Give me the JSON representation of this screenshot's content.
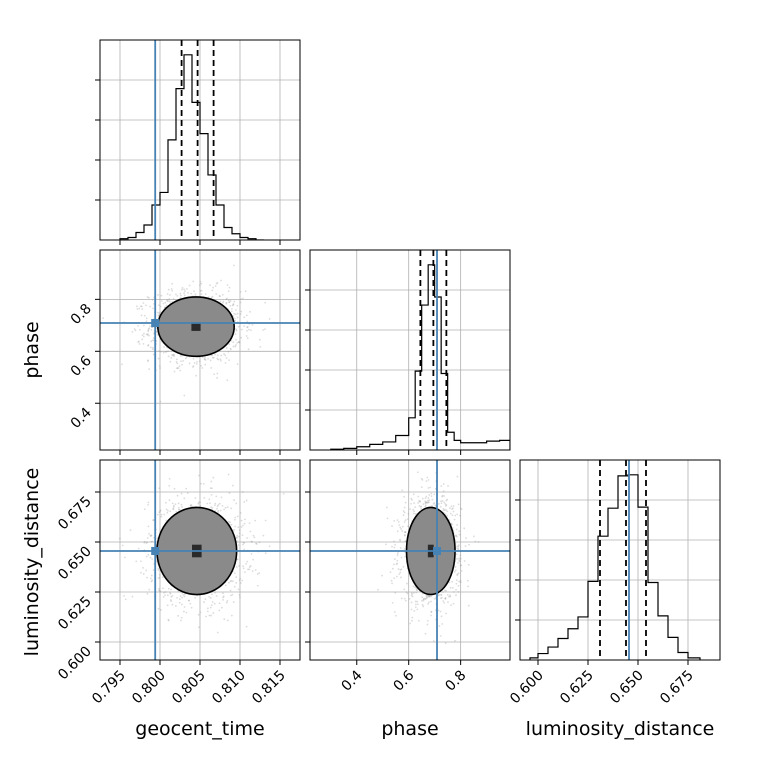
{
  "chart_data": {
    "type": "corner",
    "parameters": [
      "geocent_time",
      "phase",
      "luminosity_distance"
    ],
    "truths": {
      "geocent_time": 0.7994,
      "phase": 0.709,
      "luminosity_distance": 0.6455
    },
    "truth_color": "#4682b4",
    "ranges": {
      "geocent_time": [
        0.7925,
        0.8175
      ],
      "phase": [
        0.22,
        0.99
      ],
      "luminosity_distance": [
        0.591,
        0.691
      ]
    },
    "ticks": {
      "geocent_time": [
        0.795,
        0.8,
        0.805,
        0.81,
        0.815
      ],
      "phase": [
        0.4,
        0.6,
        0.8
      ],
      "luminosity_distance": [
        0.6,
        0.625,
        0.65,
        0.675
      ]
    },
    "tick_labels": {
      "geocent_time": [
        "0.795",
        "0.800",
        "0.805",
        "0.810",
        "0.815"
      ],
      "phase": [
        "0.4",
        "0.6",
        "0.8"
      ],
      "luminosity_distance": [
        "0.600",
        "0.625",
        "0.650",
        "0.675"
      ]
    },
    "quantiles": {
      "geocent_time": [
        0.8027,
        0.8047,
        0.8067
      ],
      "phase": [
        0.645,
        0.695,
        0.745
      ],
      "luminosity_distance": [
        0.631,
        0.644,
        0.654
      ]
    },
    "histograms": {
      "geocent_time": {
        "edges": [
          0.795,
          0.796,
          0.797,
          0.798,
          0.799,
          0.8,
          0.801,
          0.802,
          0.803,
          0.804,
          0.805,
          0.806,
          0.807,
          0.808,
          0.809,
          0.81,
          0.811,
          0.812,
          0.813
        ],
        "counts": [
          1,
          2,
          6,
          12,
          28,
          38,
          80,
          121,
          148,
          110,
          85,
          52,
          28,
          10,
          5,
          2,
          1,
          0
        ]
      },
      "phase": {
        "edges": [
          0.3,
          0.35,
          0.4,
          0.45,
          0.5,
          0.55,
          0.6,
          0.625,
          0.65,
          0.675,
          0.7,
          0.725,
          0.75,
          0.775,
          0.8,
          0.85,
          0.9,
          0.95,
          0.99
        ],
        "counts": [
          1,
          2,
          4,
          7,
          10,
          18,
          40,
          98,
          180,
          230,
          190,
          95,
          22,
          12,
          9,
          9,
          11,
          12
        ]
      },
      "luminosity_distance": {
        "edges": [
          0.596,
          0.6,
          0.605,
          0.61,
          0.615,
          0.62,
          0.625,
          0.63,
          0.635,
          0.64,
          0.645,
          0.65,
          0.655,
          0.66,
          0.665,
          0.67,
          0.675,
          0.681
        ],
        "counts": [
          2,
          6,
          12,
          20,
          29,
          40,
          73,
          115,
          141,
          171,
          172,
          142,
          72,
          41,
          21,
          7,
          2
        ]
      }
    },
    "posterior_2d": {
      "phase_vs_geocent_time": {
        "mean": [
          0.8045,
          0.695
        ],
        "sd": [
          0.0023,
          0.055
        ],
        "mode_levels": [
          0.3,
          1.2,
          2.5
        ]
      },
      "luminosity_distance_vs_geocent_time": {
        "mean": [
          0.8046,
          0.6455
        ],
        "sd": [
          0.0024,
          0.0105
        ],
        "mode_levels": [
          0.3,
          1.2,
          2.5
        ]
      },
      "luminosity_distance_vs_phase": {
        "mean": [
          0.685,
          0.6455
        ],
        "sd": [
          0.045,
          0.0105
        ],
        "mode_levels": [
          0.3,
          1.2,
          2.5
        ]
      }
    },
    "xlabel": {
      "geocent_time": "geocent_time",
      "phase": "phase",
      "luminosity_distance": "luminosity_distance"
    },
    "ylabel": {
      "phase": "phase",
      "luminosity_distance": "luminosity_distance"
    },
    "grid": true
  }
}
